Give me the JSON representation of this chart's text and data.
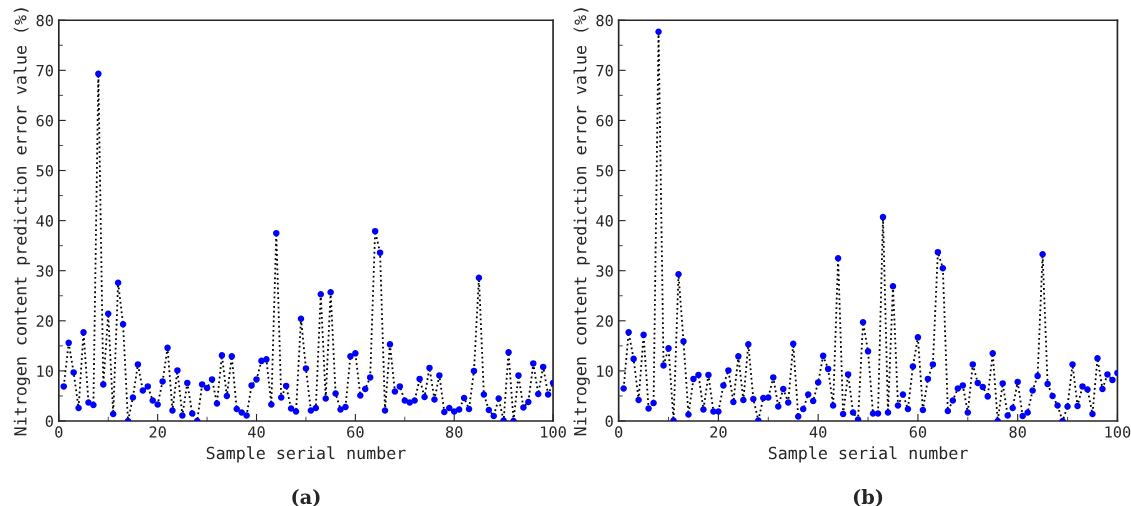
{
  "chart_data": [
    {
      "type": "line",
      "xlabel": "Sample serial number",
      "ylabel": "Nitrogen content prediction error value (%)",
      "annotations": [
        "(a)"
      ],
      "xlim": [
        0,
        100
      ],
      "xticks": [
        0,
        20,
        40,
        60,
        80,
        100
      ],
      "ylim": [
        0,
        80
      ],
      "yticks": [
        0,
        10,
        20,
        30,
        40,
        50,
        60,
        70,
        80
      ],
      "grid": false,
      "marker": "circle",
      "line_style": "dotted",
      "x": [
        1,
        2,
        3,
        4,
        5,
        6,
        7,
        8,
        9,
        10,
        11,
        12,
        13,
        14,
        15,
        16,
        17,
        18,
        19,
        20,
        21,
        22,
        23,
        24,
        25,
        26,
        27,
        28,
        29,
        30,
        31,
        32,
        33,
        34,
        35,
        36,
        37,
        38,
        39,
        40,
        41,
        42,
        43,
        44,
        45,
        46,
        47,
        48,
        49,
        50,
        51,
        52,
        53,
        54,
        55,
        56,
        57,
        58,
        59,
        60,
        61,
        62,
        63,
        64,
        65,
        66,
        67,
        68,
        69,
        70,
        71,
        72,
        73,
        74,
        75,
        76,
        77,
        78,
        79,
        80,
        81,
        82,
        83,
        84,
        85,
        86,
        87,
        88,
        89,
        90,
        91,
        92,
        93,
        94,
        95,
        96,
        97,
        98,
        99,
        100
      ],
      "series": [
        {
          "color": "#0000ff",
          "values": [
            6.9,
            15.6,
            9.7,
            2.6,
            17.7,
            3.7,
            3.2,
            69.3,
            7.3,
            21.4,
            1.4,
            27.6,
            19.3,
            0,
            4.7,
            11.3,
            6.1,
            6.9,
            4.1,
            3.3,
            7.9,
            14.6,
            2.1,
            10.1,
            1.1,
            7.6,
            1.5,
            0,
            7.3,
            6.6,
            8.3,
            3.5,
            13.1,
            5.0,
            12.9,
            2.4,
            1.7,
            1.1,
            7.1,
            8.3,
            12.0,
            12.3,
            3.3,
            37.5,
            4.7,
            7.0,
            2.5,
            1.9,
            20.4,
            10.5,
            2.1,
            2.6,
            25.3,
            4.5,
            25.7,
            5.5,
            2.3,
            2.8,
            12.9,
            13.5,
            5.1,
            6.4,
            8.7,
            37.9,
            33.6,
            2.1,
            15.3,
            5.9,
            6.9,
            4.1,
            3.7,
            4.1,
            8.4,
            4.8,
            10.6,
            4.3,
            9.1,
            1.8,
            2.6,
            1.9,
            2.3,
            4.6,
            2.4,
            10.0,
            28.6,
            5.3,
            2.2,
            1.0,
            4.5,
            0.1,
            13.7,
            0,
            9.1,
            2.7,
            3.8,
            11.5,
            5.4,
            10.8,
            5.3,
            7.6
          ]
        }
      ]
    },
    {
      "type": "line",
      "xlabel": "Sample serial number",
      "ylabel": "Nitrogen content prediction error value (%)",
      "annotations": [
        "(b)"
      ],
      "xlim": [
        0,
        100
      ],
      "xticks": [
        0,
        20,
        40,
        60,
        80,
        100
      ],
      "ylim": [
        0,
        80
      ],
      "yticks": [
        0,
        10,
        20,
        30,
        40,
        50,
        60,
        70,
        80
      ],
      "grid": false,
      "marker": "circle",
      "line_style": "dotted",
      "x": [
        1,
        2,
        3,
        4,
        5,
        6,
        7,
        8,
        9,
        10,
        11,
        12,
        13,
        14,
        15,
        16,
        17,
        18,
        19,
        20,
        21,
        22,
        23,
        24,
        25,
        26,
        27,
        28,
        29,
        30,
        31,
        32,
        33,
        34,
        35,
        36,
        37,
        38,
        39,
        40,
        41,
        42,
        43,
        44,
        45,
        46,
        47,
        48,
        49,
        50,
        51,
        52,
        53,
        54,
        55,
        56,
        57,
        58,
        59,
        60,
        61,
        62,
        63,
        64,
        65,
        66,
        67,
        68,
        69,
        70,
        71,
        72,
        73,
        74,
        75,
        76,
        77,
        78,
        79,
        80,
        81,
        82,
        83,
        84,
        85,
        86,
        87,
        88,
        89,
        90,
        91,
        92,
        93,
        94,
        95,
        96,
        97,
        98,
        99,
        100
      ],
      "series": [
        {
          "color": "#0000ff",
          "values": [
            6.5,
            17.7,
            12.4,
            4.2,
            17.2,
            2.5,
            3.6,
            77.7,
            11.1,
            14.5,
            0.1,
            29.3,
            15.9,
            1.3,
            8.4,
            9.2,
            2.3,
            9.2,
            1.9,
            1.9,
            7.1,
            10.1,
            3.8,
            12.9,
            4.2,
            15.3,
            4.4,
            0.1,
            4.6,
            4.7,
            8.7,
            2.9,
            6.4,
            3.7,
            15.4,
            0.9,
            2.4,
            5.3,
            4.0,
            7.7,
            13.0,
            10.4,
            3.1,
            32.5,
            1.4,
            9.3,
            1.7,
            0.3,
            19.7,
            13.9,
            1.5,
            1.5,
            40.7,
            1.7,
            26.9,
            3.1,
            5.3,
            2.4,
            10.9,
            16.7,
            2.2,
            8.4,
            11.3,
            33.7,
            30.5,
            2.0,
            4.1,
            6.5,
            7.1,
            1.7,
            11.3,
            7.6,
            6.8,
            4.9,
            13.5,
            0,
            7.5,
            1.1,
            2.6,
            7.8,
            1.0,
            1.7,
            6.1,
            9.0,
            33.3,
            7.4,
            5.0,
            3.1,
            0,
            2.9,
            11.3,
            3.0,
            6.9,
            6.3,
            1.4,
            12.5,
            6.4,
            9.3,
            8.2,
            9.6
          ]
        }
      ]
    }
  ]
}
